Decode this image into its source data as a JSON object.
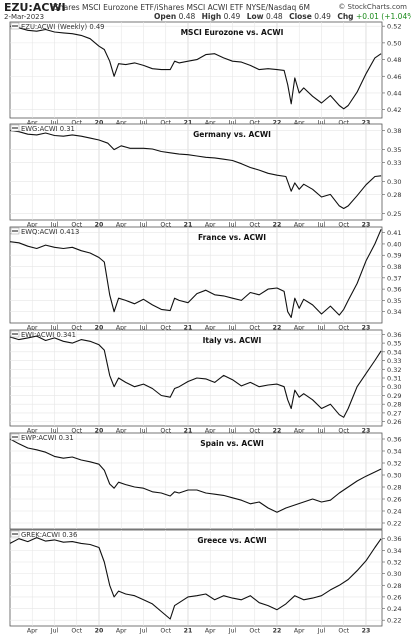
{
  "header": {
    "symbol": "EZU:ACWI",
    "description": "iShares MSCI Eurozone ETF/iShares MSCI ACWI ETF  NYSE/Nasdaq  6M",
    "credit": "© StockCharts.com",
    "date": "2-Mar-2023",
    "ohlc": {
      "open_label": "Open",
      "open": "0.48",
      "high_label": "High",
      "high": "0.49",
      "low_label": "Low",
      "low": "0.48",
      "close_label": "Close",
      "close": "0.49",
      "chg_label": "Chg",
      "chg": "+0.01 (+1.04%)",
      "chg_color": "#1a8a1a"
    }
  },
  "x_axis": {
    "ticks": [
      {
        "label": "Apr",
        "t": 2019.25,
        "bold": false
      },
      {
        "label": "Jul",
        "t": 2019.5,
        "bold": false
      },
      {
        "label": "Oct",
        "t": 2019.75,
        "bold": false
      },
      {
        "label": "20",
        "t": 2020.0,
        "bold": true
      },
      {
        "label": "Apr",
        "t": 2020.25,
        "bold": false
      },
      {
        "label": "Jul",
        "t": 2020.5,
        "bold": false
      },
      {
        "label": "Oct",
        "t": 2020.75,
        "bold": false
      },
      {
        "label": "21",
        "t": 2021.0,
        "bold": true
      },
      {
        "label": "Apr",
        "t": 2021.25,
        "bold": false
      },
      {
        "label": "Jul",
        "t": 2021.5,
        "bold": false
      },
      {
        "label": "Oct",
        "t": 2021.75,
        "bold": false
      },
      {
        "label": "22",
        "t": 2022.0,
        "bold": true
      },
      {
        "label": "Apr",
        "t": 2022.25,
        "bold": false
      },
      {
        "label": "Jul",
        "t": 2022.5,
        "bold": false
      },
      {
        "label": "Oct",
        "t": 2022.75,
        "bold": false
      },
      {
        "label": "23",
        "t": 2023.0,
        "bold": true
      }
    ],
    "range": [
      2019.0,
      2023.18
    ]
  },
  "chart_data": [
    {
      "type": "line",
      "legend": "EZU:ACWI (Weekly) 0.49",
      "title": "MSCI Eurozone vs. ACWI",
      "yticks": [
        0.42,
        0.44,
        0.46,
        0.48,
        0.5,
        0.52
      ],
      "ylim": [
        0.41,
        0.525
      ],
      "series": [
        {
          "x": [
            2019.0,
            2019.1,
            2019.2,
            2019.3,
            2019.4,
            2019.5,
            2019.6,
            2019.7,
            2019.8,
            2019.9,
            2020.0,
            2020.06,
            2020.12,
            2020.17,
            2020.22,
            2020.3,
            2020.4,
            2020.5,
            2020.6,
            2020.7,
            2020.8,
            2020.85,
            2020.9,
            2021.0,
            2021.1,
            2021.2,
            2021.3,
            2021.4,
            2021.5,
            2021.6,
            2021.7,
            2021.8,
            2021.9,
            2022.0,
            2022.08,
            2022.12,
            2022.16,
            2022.2,
            2022.25,
            2022.3,
            2022.4,
            2022.5,
            2022.6,
            2022.7,
            2022.75,
            2022.8,
            2022.9,
            2023.0,
            2023.1,
            2023.17
          ],
          "y": [
            0.52,
            0.518,
            0.515,
            0.514,
            0.516,
            0.513,
            0.512,
            0.511,
            0.509,
            0.505,
            0.496,
            0.492,
            0.478,
            0.46,
            0.475,
            0.474,
            0.476,
            0.473,
            0.469,
            0.468,
            0.468,
            0.478,
            0.476,
            0.478,
            0.48,
            0.486,
            0.487,
            0.482,
            0.478,
            0.477,
            0.473,
            0.468,
            0.469,
            0.468,
            0.467,
            0.45,
            0.427,
            0.458,
            0.44,
            0.446,
            0.436,
            0.428,
            0.437,
            0.425,
            0.421,
            0.425,
            0.441,
            0.463,
            0.482,
            0.487
          ]
        }
      ]
    },
    {
      "type": "line",
      "legend": "EWG:ACWI 0.31",
      "title": "Germany vs. ACWI",
      "yticks": [
        0.25,
        0.28,
        0.3,
        0.33,
        0.35,
        0.38
      ],
      "ylim": [
        0.24,
        0.39
      ],
      "series": [
        {
          "x": [
            2019.0,
            2019.1,
            2019.2,
            2019.3,
            2019.4,
            2019.5,
            2019.6,
            2019.7,
            2019.8,
            2019.9,
            2020.0,
            2020.1,
            2020.17,
            2020.25,
            2020.35,
            2020.5,
            2020.6,
            2020.7,
            2020.8,
            2020.9,
            2021.0,
            2021.1,
            2021.2,
            2021.3,
            2021.4,
            2021.5,
            2021.6,
            2021.7,
            2021.8,
            2021.9,
            2022.0,
            2022.1,
            2022.16,
            2022.2,
            2022.25,
            2022.3,
            2022.4,
            2022.5,
            2022.6,
            2022.7,
            2022.75,
            2022.8,
            2022.9,
            2023.0,
            2023.1,
            2023.17
          ],
          "y": [
            0.38,
            0.378,
            0.374,
            0.373,
            0.376,
            0.372,
            0.371,
            0.373,
            0.371,
            0.368,
            0.365,
            0.36,
            0.35,
            0.356,
            0.352,
            0.352,
            0.351,
            0.347,
            0.345,
            0.343,
            0.342,
            0.34,
            0.338,
            0.337,
            0.335,
            0.333,
            0.328,
            0.322,
            0.318,
            0.313,
            0.31,
            0.308,
            0.285,
            0.298,
            0.288,
            0.296,
            0.288,
            0.276,
            0.28,
            0.262,
            0.258,
            0.262,
            0.278,
            0.295,
            0.308,
            0.309
          ]
        }
      ]
    },
    {
      "type": "line",
      "legend": "EWQ:ACWI 0.413",
      "title": "France vs. ACWI",
      "yticks": [
        0.34,
        0.35,
        0.36,
        0.37,
        0.38,
        0.39,
        0.4,
        0.41
      ],
      "ylim": [
        0.33,
        0.415
      ],
      "series": [
        {
          "x": [
            2019.0,
            2019.1,
            2019.2,
            2019.3,
            2019.4,
            2019.5,
            2019.6,
            2019.7,
            2019.8,
            2019.9,
            2020.0,
            2020.06,
            2020.12,
            2020.17,
            2020.22,
            2020.3,
            2020.4,
            2020.5,
            2020.6,
            2020.7,
            2020.8,
            2020.85,
            2020.9,
            2021.0,
            2021.1,
            2021.2,
            2021.3,
            2021.4,
            2021.5,
            2021.6,
            2021.7,
            2021.8,
            2021.9,
            2022.0,
            2022.08,
            2022.12,
            2022.16,
            2022.2,
            2022.25,
            2022.3,
            2022.4,
            2022.5,
            2022.6,
            2022.7,
            2022.75,
            2022.8,
            2022.9,
            2023.0,
            2023.1,
            2023.17
          ],
          "y": [
            0.402,
            0.401,
            0.398,
            0.396,
            0.399,
            0.397,
            0.396,
            0.397,
            0.394,
            0.392,
            0.388,
            0.384,
            0.355,
            0.34,
            0.352,
            0.35,
            0.347,
            0.351,
            0.346,
            0.342,
            0.341,
            0.352,
            0.35,
            0.348,
            0.356,
            0.359,
            0.355,
            0.354,
            0.352,
            0.35,
            0.357,
            0.355,
            0.36,
            0.361,
            0.358,
            0.34,
            0.335,
            0.352,
            0.343,
            0.351,
            0.346,
            0.338,
            0.345,
            0.337,
            0.342,
            0.35,
            0.365,
            0.385,
            0.4,
            0.413
          ]
        }
      ]
    },
    {
      "type": "line",
      "legend": "EWI:ACWI 0.341",
      "title": "Italy vs. ACWI",
      "yticks": [
        0.26,
        0.27,
        0.28,
        0.29,
        0.3,
        0.31,
        0.32,
        0.33,
        0.34,
        0.35,
        0.36
      ],
      "ylim": [
        0.255,
        0.365
      ],
      "series": [
        {
          "x": [
            2019.0,
            2019.1,
            2019.2,
            2019.3,
            2019.4,
            2019.5,
            2019.6,
            2019.7,
            2019.8,
            2019.9,
            2020.0,
            2020.06,
            2020.12,
            2020.17,
            2020.22,
            2020.3,
            2020.4,
            2020.5,
            2020.6,
            2020.7,
            2020.8,
            2020.85,
            2020.9,
            2021.0,
            2021.1,
            2021.2,
            2021.3,
            2021.4,
            2021.5,
            2021.6,
            2021.7,
            2021.8,
            2021.9,
            2022.0,
            2022.08,
            2022.12,
            2022.16,
            2022.2,
            2022.25,
            2022.3,
            2022.4,
            2022.5,
            2022.6,
            2022.7,
            2022.75,
            2022.8,
            2022.9,
            2023.0,
            2023.1,
            2023.17
          ],
          "y": [
            0.357,
            0.354,
            0.356,
            0.358,
            0.353,
            0.356,
            0.352,
            0.35,
            0.354,
            0.352,
            0.348,
            0.342,
            0.313,
            0.3,
            0.31,
            0.305,
            0.3,
            0.303,
            0.298,
            0.29,
            0.288,
            0.298,
            0.3,
            0.306,
            0.31,
            0.309,
            0.305,
            0.313,
            0.308,
            0.301,
            0.305,
            0.3,
            0.302,
            0.303,
            0.3,
            0.285,
            0.275,
            0.296,
            0.288,
            0.292,
            0.285,
            0.275,
            0.28,
            0.268,
            0.265,
            0.275,
            0.3,
            0.315,
            0.33,
            0.341
          ]
        }
      ]
    },
    {
      "type": "line",
      "legend": "EWP:ACWI 0.31",
      "title": "Spain vs. ACWI",
      "yticks": [
        0.22,
        0.24,
        0.26,
        0.28,
        0.3,
        0.32,
        0.34,
        0.36
      ],
      "ylim": [
        0.21,
        0.37
      ],
      "series": [
        {
          "x": [
            2019.0,
            2019.1,
            2019.2,
            2019.3,
            2019.4,
            2019.5,
            2019.6,
            2019.7,
            2019.8,
            2019.9,
            2020.0,
            2020.06,
            2020.12,
            2020.17,
            2020.22,
            2020.3,
            2020.4,
            2020.5,
            2020.6,
            2020.7,
            2020.8,
            2020.85,
            2020.9,
            2021.0,
            2021.1,
            2021.2,
            2021.3,
            2021.4,
            2021.5,
            2021.6,
            2021.7,
            2021.8,
            2021.9,
            2022.0,
            2022.1,
            2022.2,
            2022.3,
            2022.4,
            2022.5,
            2022.6,
            2022.7,
            2022.8,
            2022.9,
            2023.0,
            2023.1,
            2023.17
          ],
          "y": [
            0.36,
            0.352,
            0.345,
            0.342,
            0.338,
            0.331,
            0.328,
            0.33,
            0.325,
            0.322,
            0.318,
            0.308,
            0.285,
            0.278,
            0.288,
            0.284,
            0.28,
            0.278,
            0.272,
            0.27,
            0.265,
            0.272,
            0.27,
            0.275,
            0.275,
            0.27,
            0.268,
            0.266,
            0.262,
            0.258,
            0.252,
            0.255,
            0.245,
            0.238,
            0.245,
            0.25,
            0.255,
            0.26,
            0.255,
            0.258,
            0.27,
            0.28,
            0.29,
            0.298,
            0.305,
            0.31
          ]
        }
      ]
    },
    {
      "type": "line",
      "legend": "GREK:ACWI 0.36",
      "title": "Greece vs. ACWI",
      "yticks": [
        0.22,
        0.24,
        0.26,
        0.28,
        0.3,
        0.32,
        0.34,
        0.36
      ],
      "ylim": [
        0.21,
        0.375
      ],
      "series": [
        {
          "x": [
            2019.0,
            2019.1,
            2019.2,
            2019.3,
            2019.4,
            2019.5,
            2019.6,
            2019.7,
            2019.8,
            2019.9,
            2020.0,
            2020.06,
            2020.12,
            2020.17,
            2020.22,
            2020.3,
            2020.4,
            2020.5,
            2020.6,
            2020.7,
            2020.8,
            2020.85,
            2020.9,
            2021.0,
            2021.1,
            2021.2,
            2021.3,
            2021.4,
            2021.5,
            2021.6,
            2021.7,
            2021.8,
            2021.9,
            2022.0,
            2022.1,
            2022.2,
            2022.3,
            2022.4,
            2022.5,
            2022.6,
            2022.7,
            2022.8,
            2022.9,
            2023.0,
            2023.1,
            2023.17
          ],
          "y": [
            0.352,
            0.36,
            0.355,
            0.362,
            0.356,
            0.358,
            0.354,
            0.355,
            0.352,
            0.35,
            0.345,
            0.32,
            0.28,
            0.26,
            0.27,
            0.265,
            0.262,
            0.255,
            0.248,
            0.235,
            0.222,
            0.245,
            0.25,
            0.26,
            0.262,
            0.265,
            0.255,
            0.262,
            0.258,
            0.255,
            0.262,
            0.25,
            0.245,
            0.238,
            0.248,
            0.262,
            0.255,
            0.258,
            0.262,
            0.272,
            0.28,
            0.29,
            0.305,
            0.322,
            0.345,
            0.36
          ]
        }
      ]
    }
  ]
}
